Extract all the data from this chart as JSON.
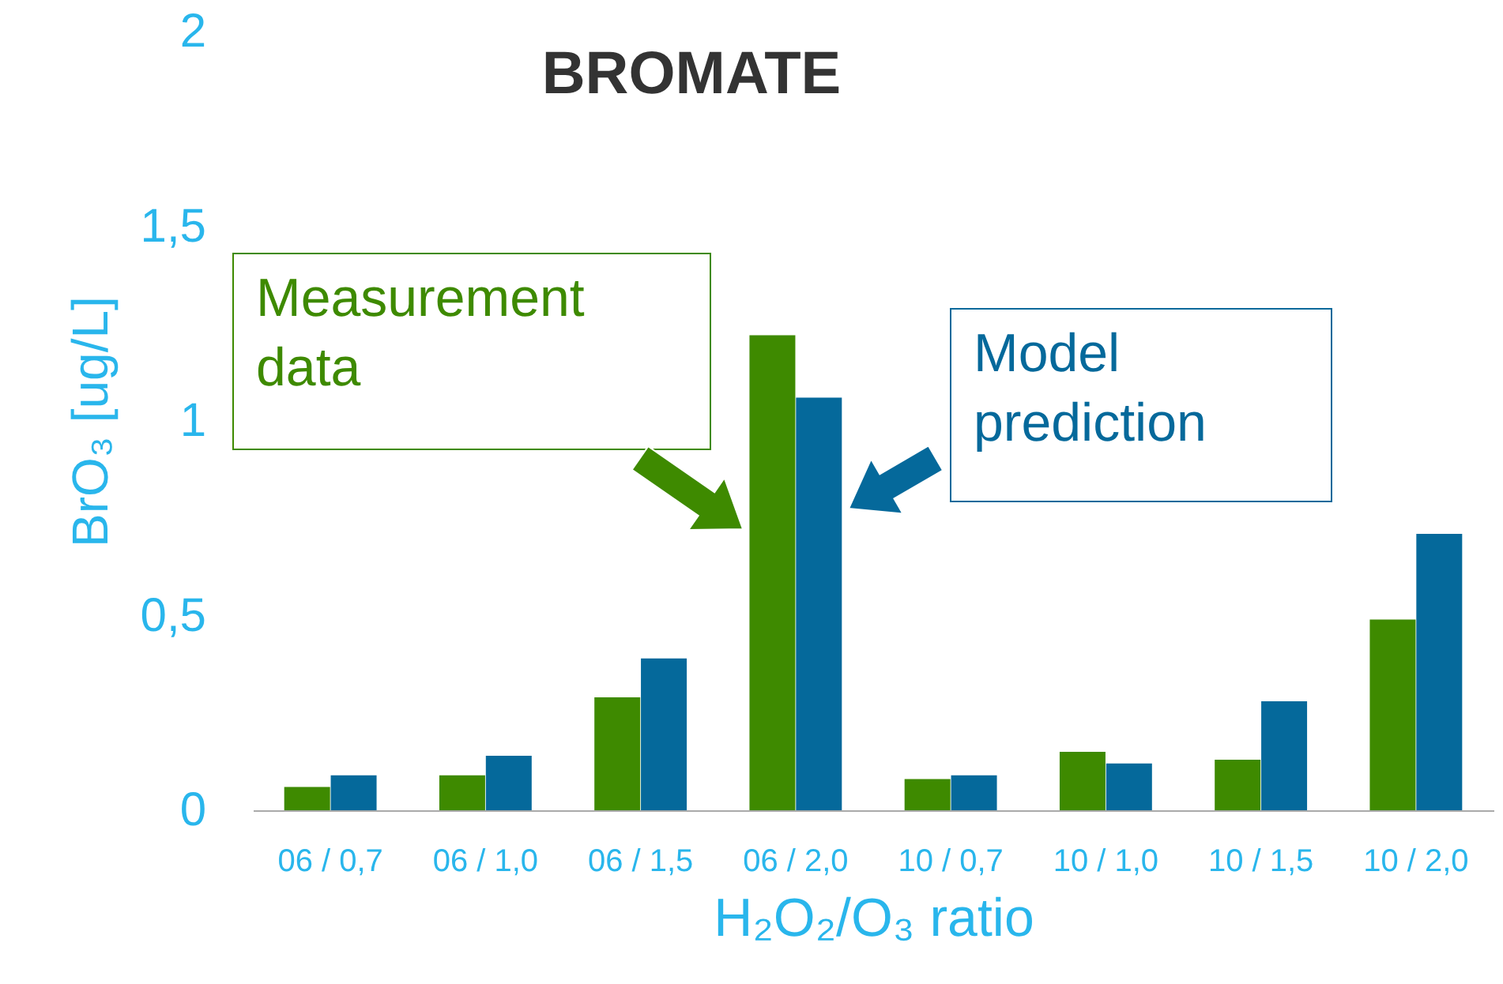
{
  "chart_data": {
    "type": "bar",
    "title": "BROMATE",
    "xlabel": "H₂O₂/O₃ ratio",
    "ylabel": "BrO₃ [ug/L]",
    "categories": [
      "06 / 0,7",
      "06 / 1,0",
      "06 / 1,5",
      "06 / 2,0",
      "10 / 0,7",
      "10 / 1,0",
      "10 / 1,5",
      "10 / 2,0"
    ],
    "series": [
      {
        "name": "Measurement data",
        "color": "#3e8a00",
        "values": [
          0.06,
          0.09,
          0.29,
          1.22,
          0.08,
          0.15,
          0.13,
          0.49
        ]
      },
      {
        "name": "Model prediction",
        "color": "#05699b",
        "values": [
          0.09,
          0.14,
          0.39,
          1.06,
          0.09,
          0.12,
          0.28,
          0.71
        ]
      }
    ],
    "ylim": [
      0,
      2
    ],
    "yticks": [
      0,
      {
        "value": 0.5,
        "label": "0,5"
      },
      1,
      {
        "value": 1.5,
        "label": "1,5"
      },
      2
    ],
    "grid": false
  }
}
